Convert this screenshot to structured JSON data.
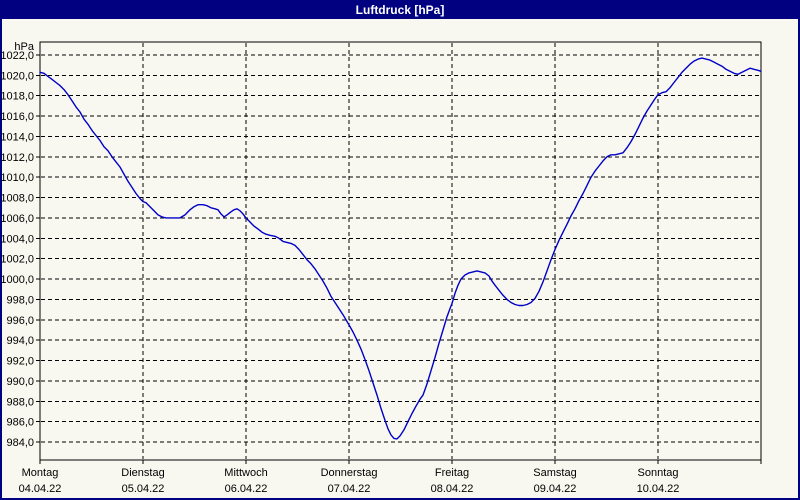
{
  "window": {
    "title": "Luftdruck [hPa]"
  },
  "colors": {
    "titlebar_bg": "#000080",
    "title_text": "#FFFFFF",
    "window_border": "#000080",
    "window_bg": "#F8F8F0",
    "plot_border": "#000000",
    "grid": "#000000",
    "line": "#0000C8",
    "label_text": "#000000"
  },
  "y_axis": {
    "unit": "hPa",
    "ticks": [
      {
        "v": 1022,
        "label": "1022,0"
      },
      {
        "v": 1020,
        "label": "1020,0"
      },
      {
        "v": 1018,
        "label": "1018,0"
      },
      {
        "v": 1016,
        "label": "1016,0"
      },
      {
        "v": 1014,
        "label": "1014,0"
      },
      {
        "v": 1012,
        "label": "1012,0"
      },
      {
        "v": 1010,
        "label": "1010,0"
      },
      {
        "v": 1008,
        "label": "1008,0"
      },
      {
        "v": 1006,
        "label": "1006,0"
      },
      {
        "v": 1004,
        "label": "1004,0"
      },
      {
        "v": 1002,
        "label": "1002,0"
      },
      {
        "v": 1000,
        "label": "1000,0"
      },
      {
        "v": 998,
        "label": "998,0"
      },
      {
        "v": 996,
        "label": "996,0"
      },
      {
        "v": 994,
        "label": "994,0"
      },
      {
        "v": 992,
        "label": "992,0"
      },
      {
        "v": 990,
        "label": "990,0"
      },
      {
        "v": 988,
        "label": "988,0"
      },
      {
        "v": 986,
        "label": "986,0"
      },
      {
        "v": 984,
        "label": "984,0"
      }
    ]
  },
  "x_axis": {
    "days": [
      {
        "weekday": "Montag",
        "date": "04.04.22"
      },
      {
        "weekday": "Dienstag",
        "date": "05.04.22"
      },
      {
        "weekday": "Mittwoch",
        "date": "06.04.22"
      },
      {
        "weekday": "Donnerstag",
        "date": "07.04.22"
      },
      {
        "weekday": "Freitag",
        "date": "08.04.22"
      },
      {
        "weekday": "Samstag",
        "date": "09.04.22"
      },
      {
        "weekday": "Sonntag",
        "date": "10.04.22"
      }
    ]
  },
  "chart_data": {
    "type": "line",
    "title": "Luftdruck [hPa]",
    "ylabel": "hPa",
    "xlabel": "",
    "grid": true,
    "legend": "none",
    "ylim": [
      982.1,
      1023.3
    ],
    "y_tick_step": 2,
    "x_range_days": [
      0,
      7
    ],
    "x_day_width_units": 1,
    "series_name": "Luftdruck",
    "points": [
      [
        0.0,
        1020.3
      ],
      [
        0.039,
        1020.2
      ],
      [
        0.078,
        1019.9
      ],
      [
        0.117,
        1019.6
      ],
      [
        0.155,
        1019.3
      ],
      [
        0.194,
        1019.0
      ],
      [
        0.233,
        1018.6
      ],
      [
        0.272,
        1018.1
      ],
      [
        0.311,
        1017.5
      ],
      [
        0.35,
        1016.9
      ],
      [
        0.388,
        1016.4
      ],
      [
        0.427,
        1015.7
      ],
      [
        0.466,
        1015.2
      ],
      [
        0.505,
        1014.6
      ],
      [
        0.544,
        1014.1
      ],
      [
        0.583,
        1013.6
      ],
      [
        0.621,
        1013.0
      ],
      [
        0.66,
        1012.6
      ],
      [
        0.699,
        1012.0
      ],
      [
        0.738,
        1011.5
      ],
      [
        0.777,
        1011.0
      ],
      [
        0.816,
        1010.3
      ],
      [
        0.854,
        1009.6
      ],
      [
        0.893,
        1009.0
      ],
      [
        0.932,
        1008.4
      ],
      [
        0.971,
        1007.9
      ],
      [
        1.0,
        1007.6
      ],
      [
        1.029,
        1007.5
      ],
      [
        1.068,
        1007.1
      ],
      [
        1.107,
        1006.7
      ],
      [
        1.146,
        1006.3
      ],
      [
        1.184,
        1006.1
      ],
      [
        1.223,
        1006.0
      ],
      [
        1.262,
        1006.0
      ],
      [
        1.311,
        1006.0
      ],
      [
        1.359,
        1006.0
      ],
      [
        1.408,
        1006.3
      ],
      [
        1.456,
        1006.8
      ],
      [
        1.495,
        1007.1
      ],
      [
        1.534,
        1007.3
      ],
      [
        1.583,
        1007.3
      ],
      [
        1.621,
        1007.2
      ],
      [
        1.66,
        1007.0
      ],
      [
        1.699,
        1006.9
      ],
      [
        1.728,
        1006.8
      ],
      [
        1.757,
        1006.4
      ],
      [
        1.786,
        1006.1
      ],
      [
        1.816,
        1006.3
      ],
      [
        1.854,
        1006.6
      ],
      [
        1.883,
        1006.8
      ],
      [
        1.913,
        1006.9
      ],
      [
        1.942,
        1006.7
      ],
      [
        1.971,
        1006.4
      ],
      [
        2.0,
        1006.0
      ],
      [
        2.039,
        1005.6
      ],
      [
        2.078,
        1005.2
      ],
      [
        2.117,
        1004.9
      ],
      [
        2.155,
        1004.6
      ],
      [
        2.194,
        1004.4
      ],
      [
        2.233,
        1004.3
      ],
      [
        2.282,
        1004.2
      ],
      [
        2.32,
        1004.0
      ],
      [
        2.359,
        1003.7
      ],
      [
        2.398,
        1003.6
      ],
      [
        2.437,
        1003.5
      ],
      [
        2.476,
        1003.3
      ],
      [
        2.515,
        1002.9
      ],
      [
        2.553,
        1002.4
      ],
      [
        2.592,
        1001.9
      ],
      [
        2.631,
        1001.5
      ],
      [
        2.67,
        1001.0
      ],
      [
        2.709,
        1000.4
      ],
      [
        2.748,
        999.8
      ],
      [
        2.786,
        999.1
      ],
      [
        2.825,
        998.3
      ],
      [
        2.864,
        997.7
      ],
      [
        2.903,
        997.1
      ],
      [
        2.942,
        996.5
      ],
      [
        2.971,
        996.0
      ],
      [
        3.0,
        995.5
      ],
      [
        3.039,
        994.8
      ],
      [
        3.078,
        994.0
      ],
      [
        3.117,
        993.1
      ],
      [
        3.155,
        992.1
      ],
      [
        3.194,
        991.0
      ],
      [
        3.233,
        989.8
      ],
      [
        3.272,
        988.6
      ],
      [
        3.311,
        987.3
      ],
      [
        3.35,
        986.1
      ],
      [
        3.379,
        985.3
      ],
      [
        3.408,
        984.7
      ],
      [
        3.437,
        984.35
      ],
      [
        3.466,
        984.3
      ],
      [
        3.495,
        984.6
      ],
      [
        3.534,
        985.2
      ],
      [
        3.573,
        986.0
      ],
      [
        3.612,
        986.8
      ],
      [
        3.65,
        987.5
      ],
      [
        3.689,
        988.2
      ],
      [
        3.718,
        988.6
      ],
      [
        3.757,
        989.7
      ],
      [
        3.796,
        991.0
      ],
      [
        3.835,
        992.3
      ],
      [
        3.874,
        993.7
      ],
      [
        3.913,
        995.0
      ],
      [
        3.951,
        996.3
      ],
      [
        3.981,
        997.1
      ],
      [
        4.0,
        997.6
      ],
      [
        4.029,
        998.6
      ],
      [
        4.058,
        999.4
      ],
      [
        4.087,
        1000.0
      ],
      [
        4.126,
        1000.4
      ],
      [
        4.165,
        1000.6
      ],
      [
        4.204,
        1000.7
      ],
      [
        4.243,
        1000.8
      ],
      [
        4.282,
        1000.7
      ],
      [
        4.32,
        1000.6
      ],
      [
        4.359,
        1000.3
      ],
      [
        4.388,
        999.8
      ],
      [
        4.417,
        999.4
      ],
      [
        4.456,
        998.9
      ],
      [
        4.495,
        998.4
      ],
      [
        4.534,
        998.0
      ],
      [
        4.573,
        997.7
      ],
      [
        4.612,
        997.5
      ],
      [
        4.65,
        997.4
      ],
      [
        4.689,
        997.4
      ],
      [
        4.728,
        997.5
      ],
      [
        4.767,
        997.7
      ],
      [
        4.806,
        998.1
      ],
      [
        4.845,
        998.8
      ],
      [
        4.883,
        999.7
      ],
      [
        4.922,
        1000.8
      ],
      [
        4.961,
        1001.9
      ],
      [
        5.0,
        1002.9
      ],
      [
        5.039,
        1003.8
      ],
      [
        5.078,
        1004.6
      ],
      [
        5.117,
        1005.4
      ],
      [
        5.155,
        1006.2
      ],
      [
        5.194,
        1006.9
      ],
      [
        5.233,
        1007.7
      ],
      [
        5.272,
        1008.4
      ],
      [
        5.311,
        1009.2
      ],
      [
        5.35,
        1010.0
      ],
      [
        5.388,
        1010.6
      ],
      [
        5.427,
        1011.1
      ],
      [
        5.466,
        1011.6
      ],
      [
        5.505,
        1012.0
      ],
      [
        5.544,
        1012.2
      ],
      [
        5.583,
        1012.2
      ],
      [
        5.621,
        1012.3
      ],
      [
        5.66,
        1012.4
      ],
      [
        5.699,
        1012.9
      ],
      [
        5.738,
        1013.5
      ],
      [
        5.777,
        1014.2
      ],
      [
        5.816,
        1015.0
      ],
      [
        5.854,
        1015.8
      ],
      [
        5.893,
        1016.5
      ],
      [
        5.932,
        1017.1
      ],
      [
        5.971,
        1017.7
      ],
      [
        6.0,
        1018.1
      ],
      [
        6.039,
        1018.3
      ],
      [
        6.078,
        1018.4
      ],
      [
        6.117,
        1018.8
      ],
      [
        6.155,
        1019.3
      ],
      [
        6.194,
        1019.8
      ],
      [
        6.233,
        1020.3
      ],
      [
        6.272,
        1020.7
      ],
      [
        6.311,
        1021.1
      ],
      [
        6.35,
        1021.4
      ],
      [
        6.388,
        1021.6
      ],
      [
        6.427,
        1021.7
      ],
      [
        6.466,
        1021.6
      ],
      [
        6.505,
        1021.5
      ],
      [
        6.544,
        1021.3
      ],
      [
        6.583,
        1021.1
      ],
      [
        6.621,
        1020.9
      ],
      [
        6.66,
        1020.6
      ],
      [
        6.699,
        1020.4
      ],
      [
        6.738,
        1020.2
      ],
      [
        6.777,
        1020.1
      ],
      [
        6.816,
        1020.3
      ],
      [
        6.854,
        1020.5
      ],
      [
        6.893,
        1020.7
      ],
      [
        6.932,
        1020.6
      ],
      [
        6.971,
        1020.5
      ],
      [
        7.0,
        1020.4
      ]
    ]
  }
}
